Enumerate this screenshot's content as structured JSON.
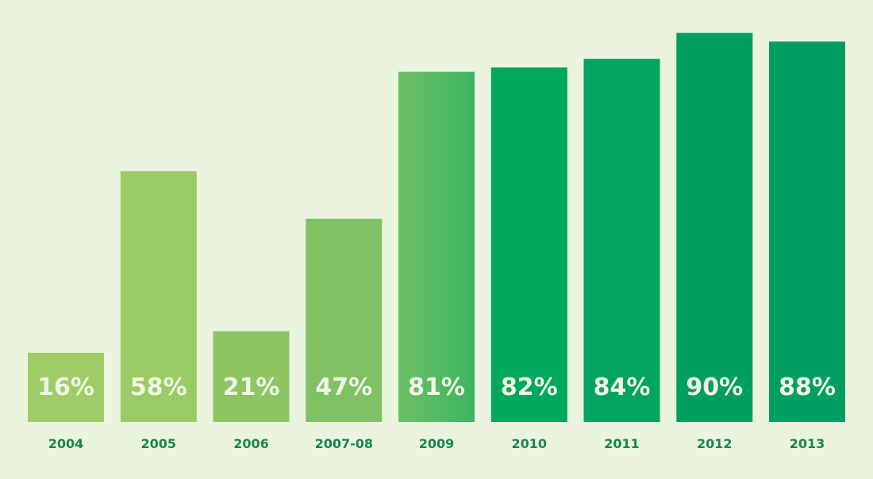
{
  "chart_data": {
    "type": "bar",
    "categories": [
      "2004",
      "2005",
      "2006",
      "2007-08",
      "2009",
      "2010",
      "2011",
      "2012",
      "2013"
    ],
    "values": [
      16,
      58,
      21,
      47,
      81,
      82,
      84,
      90,
      88
    ],
    "value_labels": [
      "16%",
      "58%",
      "21%",
      "47%",
      "81%",
      "82%",
      "84%",
      "90%",
      "88%"
    ],
    "bar_colors": [
      "#9fcc66",
      "#9bcb65",
      "#8dc563",
      "#80c166",
      "#4fb965",
      "#00a85c",
      "#00a35f",
      "#009e5f",
      "#009e62"
    ],
    "title": "",
    "xlabel": "",
    "ylabel": "",
    "ylim": [
      0,
      100
    ],
    "grid": false,
    "legend": "none"
  },
  "colors": {
    "background": "#ebf4de",
    "value_label": "#eef6e3",
    "category_label": "#17864a"
  }
}
